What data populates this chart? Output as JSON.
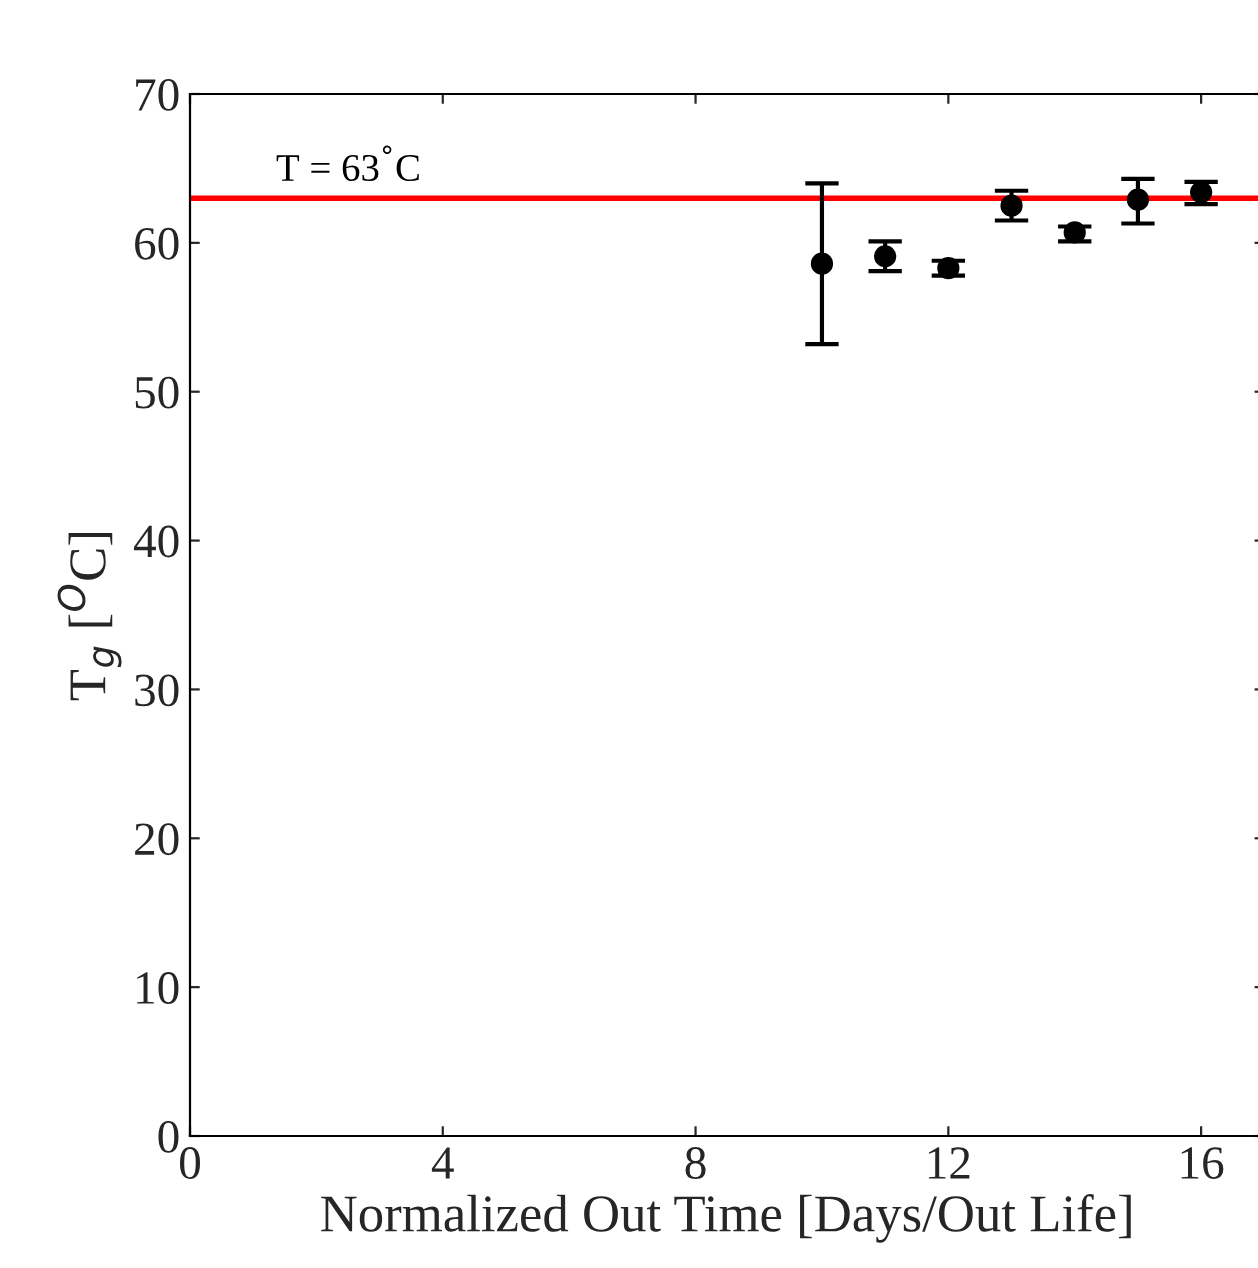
{
  "chart_data": {
    "type": "scatter",
    "xlabel": "Normalized Out Time [Days/Out Life]",
    "ylabel": "T$_{g}$ [$^{O}$C]",
    "x": [
      10,
      11,
      12,
      13,
      14,
      15,
      16
    ],
    "values": [
      58.6,
      59.1,
      58.3,
      62.5,
      60.7,
      62.9,
      63.4
    ],
    "errors": [
      [
        53.2,
        64.0
      ],
      [
        58.1,
        60.1
      ],
      [
        57.8,
        58.8
      ],
      [
        61.5,
        63.5
      ],
      [
        60.1,
        61.1
      ],
      [
        61.3,
        64.3
      ],
      [
        62.6,
        64.1
      ]
    ],
    "color": "#000000",
    "marker": "circle",
    "xlim": [
      0,
      17
    ],
    "ylim": [
      0,
      70
    ],
    "xticks": [
      0,
      4,
      8,
      12,
      16
    ],
    "yticks": [
      0,
      10,
      20,
      30,
      40,
      50,
      60,
      70
    ],
    "ref_lines": [
      {
        "axis": "y",
        "value": 63,
        "label": "T = 63$^{°}$C",
        "color": "#ff0000",
        "line_style": "solid"
      }
    ],
    "grid": false
  }
}
